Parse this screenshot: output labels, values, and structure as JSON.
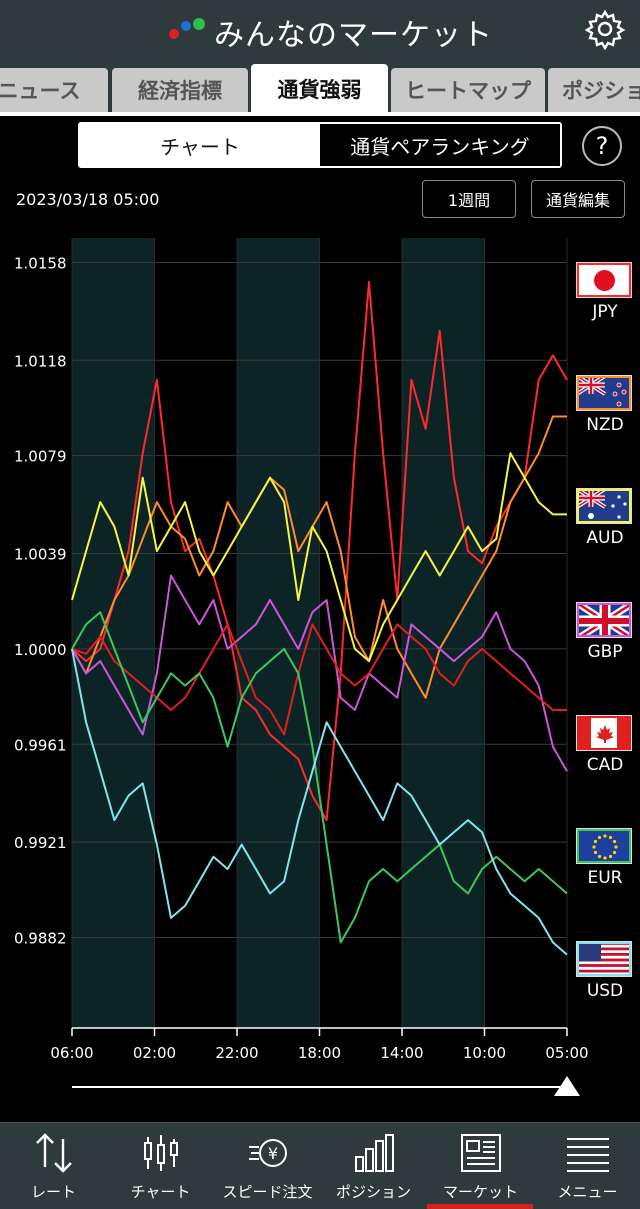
{
  "header": {
    "title": "みんなのマーケット"
  },
  "tabs": [
    {
      "label": "ニュース"
    },
    {
      "label": "経済指標"
    },
    {
      "label": "通貨強弱"
    },
    {
      "label": "ヒートマップ"
    },
    {
      "label": "ポジショ"
    }
  ],
  "segment": {
    "chart_label": "チャート",
    "ranking_label": "通貨ペアランキング"
  },
  "help_label": "?",
  "datetime": "2023/03/18 05:00",
  "buttons": {
    "period": "1週間",
    "edit": "通貨編集"
  },
  "currencies": [
    {
      "code": "JPY"
    },
    {
      "code": "NZD"
    },
    {
      "code": "AUD"
    },
    {
      "code": "GBP"
    },
    {
      "code": "CAD"
    },
    {
      "code": "EUR"
    },
    {
      "code": "USD"
    }
  ],
  "nav": [
    {
      "label": "レート"
    },
    {
      "label": "チャート"
    },
    {
      "label": "スピード注文"
    },
    {
      "label": "ポジション"
    },
    {
      "label": "マーケット"
    },
    {
      "label": "メニュー"
    }
  ],
  "colors": {
    "JPY": "#ff2a2a",
    "NZD": "#ff8c2a",
    "AUD": "#f5f542",
    "GBP": "#cc55dd",
    "CAD": "#e0201e",
    "EUR": "#3cc85a",
    "USD": "#7fe6f0",
    "background": "#000000",
    "header": "#2f3a3c"
  },
  "chart_data": {
    "type": "line",
    "ytick_labels": [
      "1.0158",
      "1.0118",
      "1.0079",
      "1.0039",
      "1.0000",
      "0.9961",
      "0.9921",
      "0.9882"
    ],
    "yticks": [
      1.0158,
      1.0118,
      1.0079,
      1.0039,
      1.0,
      0.9961,
      0.9921,
      0.9882
    ],
    "ylim": [
      0.9845,
      1.0168
    ],
    "xtick_labels": [
      "06:00",
      "02:00",
      "22:00",
      "18:00",
      "14:00",
      "10:00",
      "05:00"
    ],
    "grid": true,
    "series": [
      {
        "name": "JPY",
        "values": [
          1.0,
          0.9995,
          1.0,
          1.002,
          1.004,
          1.008,
          1.011,
          1.006,
          1.004,
          1.0045,
          1.003,
          1.001,
          0.998,
          0.9975,
          0.9965,
          0.996,
          0.9955,
          0.994,
          0.993,
          0.999,
          1.008,
          1.015,
          1.008,
          1.002,
          1.011,
          1.009,
          1.013,
          1.007,
          1.004,
          1.0035,
          1.005,
          1.006,
          1.007,
          1.011,
          1.012,
          1.011
        ]
      },
      {
        "name": "NZD",
        "values": [
          1.0,
          0.999,
          1.0005,
          1.002,
          1.003,
          1.0045,
          1.006,
          1.005,
          1.0045,
          1.003,
          1.004,
          1.006,
          1.005,
          1.006,
          1.007,
          1.0065,
          1.004,
          1.005,
          1.006,
          1.004,
          1.0005,
          0.9995,
          1.002,
          1.0,
          0.999,
          0.998,
          1.0,
          1.001,
          1.002,
          1.003,
          1.004,
          1.006,
          1.007,
          1.008,
          1.0095,
          1.0095
        ]
      },
      {
        "name": "AUD",
        "values": [
          1.002,
          1.004,
          1.006,
          1.005,
          1.003,
          1.007,
          1.004,
          1.005,
          1.006,
          1.004,
          1.003,
          1.004,
          1.005,
          1.006,
          1.007,
          1.006,
          1.002,
          1.005,
          1.004,
          1.002,
          1.0,
          0.9995,
          1.001,
          1.002,
          1.003,
          1.004,
          1.003,
          1.004,
          1.005,
          1.004,
          1.0045,
          1.008,
          1.007,
          1.006,
          1.0055,
          1.0055
        ]
      },
      {
        "name": "GBP",
        "values": [
          1.0,
          0.999,
          0.9995,
          0.9985,
          0.9975,
          0.9965,
          0.999,
          1.003,
          1.002,
          1.001,
          1.002,
          1.0,
          1.0005,
          1.001,
          1.002,
          1.001,
          1.0,
          1.0015,
          1.002,
          0.998,
          0.9975,
          0.999,
          0.9985,
          0.998,
          1.001,
          1.0005,
          1.0,
          0.9995,
          1.0,
          1.0005,
          1.0015,
          1.0,
          0.9995,
          0.9985,
          0.996,
          0.995
        ]
      },
      {
        "name": "CAD",
        "values": [
          1.0,
          0.9998,
          1.0005,
          0.9995,
          0.999,
          0.9985,
          0.998,
          0.9975,
          0.998,
          0.999,
          1.0,
          1.001,
          0.9995,
          0.998,
          0.9975,
          0.9965,
          0.999,
          1.001,
          1.0,
          0.999,
          0.9985,
          0.999,
          1.0,
          1.001,
          1.0005,
          1.0,
          0.999,
          0.9985,
          0.9995,
          1.0,
          0.9995,
          0.999,
          0.9985,
          0.998,
          0.9975,
          0.9975
        ]
      },
      {
        "name": "EUR",
        "values": [
          1.0,
          1.001,
          1.0015,
          1.0,
          0.9985,
          0.997,
          0.998,
          0.999,
          0.9985,
          0.999,
          0.998,
          0.996,
          0.998,
          0.999,
          0.9995,
          1.0,
          0.999,
          0.996,
          0.992,
          0.988,
          0.989,
          0.9905,
          0.991,
          0.9905,
          0.991,
          0.9915,
          0.992,
          0.9905,
          0.99,
          0.991,
          0.9915,
          0.991,
          0.9905,
          0.991,
          0.9905,
          0.99
        ]
      },
      {
        "name": "USD",
        "values": [
          1.0,
          0.997,
          0.995,
          0.993,
          0.994,
          0.9945,
          0.992,
          0.989,
          0.9895,
          0.9905,
          0.9915,
          0.991,
          0.992,
          0.991,
          0.99,
          0.9905,
          0.993,
          0.995,
          0.997,
          0.996,
          0.995,
          0.994,
          0.993,
          0.9945,
          0.994,
          0.993,
          0.992,
          0.9925,
          0.993,
          0.9925,
          0.991,
          0.99,
          0.9895,
          0.989,
          0.988,
          0.9875
        ]
      }
    ]
  }
}
